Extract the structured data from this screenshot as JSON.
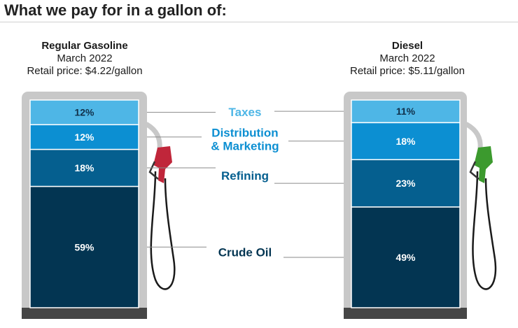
{
  "page": {
    "title": "What we pay for in a gallon of:"
  },
  "colors": {
    "taxes": "#4eb6e6",
    "distribution": "#0c8fd2",
    "refining": "#055f8f",
    "crude": "#033552",
    "pump_body": "#c8c8c8",
    "pump_base": "#464646",
    "gas_nozzle": "#c0263a",
    "diesel_nozzle": "#3c9a2e",
    "leader": "#8a8a8a"
  },
  "chart_data": {
    "type": "bar",
    "stacked": true,
    "units": "percent of retail price",
    "categories": [
      "Crude Oil",
      "Refining",
      "Distribution & Marketing",
      "Taxes"
    ],
    "category_label_lines": [
      [
        "Crude Oil"
      ],
      [
        "Refining"
      ],
      [
        "Distribution",
        "& Marketing"
      ],
      [
        "Taxes"
      ]
    ],
    "series": [
      {
        "name": "Regular Gasoline",
        "period": "March 2022",
        "price_note": "Retail price: $4.22/gallon",
        "values": [
          59,
          18,
          12,
          12
        ],
        "labels": [
          "59%",
          "18%",
          "12%",
          "12%"
        ]
      },
      {
        "name": "Diesel",
        "period": "March 2022",
        "price_note": "Retail price: $5.11/gallon",
        "values": [
          49,
          23,
          18,
          11
        ],
        "labels": [
          "49%",
          "23%",
          "18%",
          "11%"
        ]
      }
    ]
  }
}
